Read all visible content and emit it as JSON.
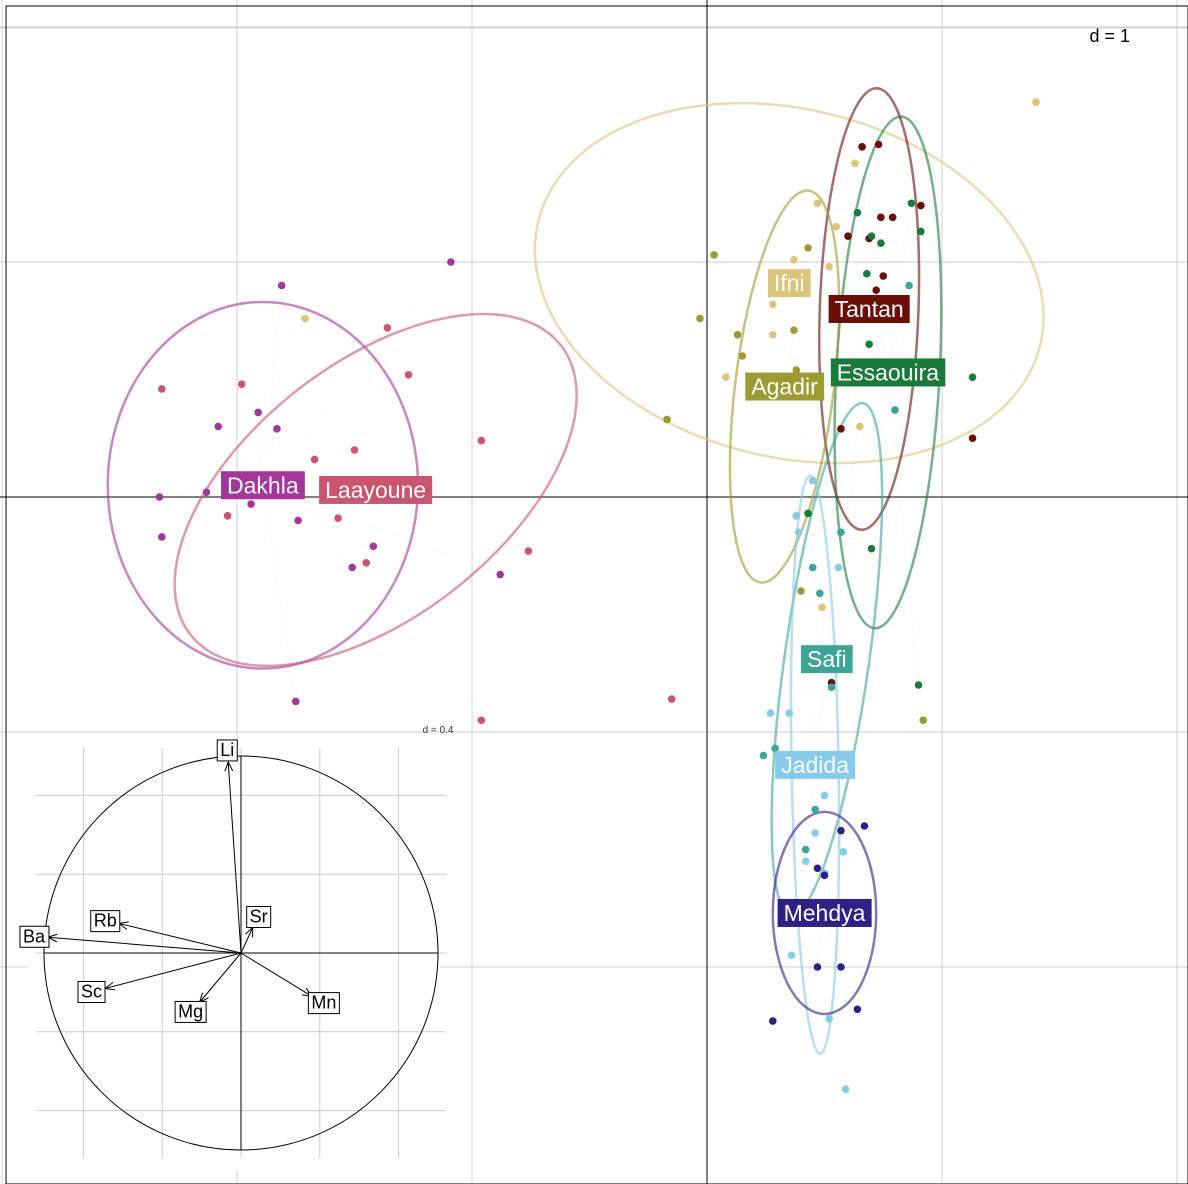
{
  "chart_data": {
    "type": "scatter",
    "title": "",
    "xlabel": "",
    "ylabel": "",
    "xlim": [
      -3.0,
      2.05
    ],
    "ylim": [
      -2.9,
      2.1
    ],
    "grid": true,
    "scale_label": "d = 1",
    "groups": [
      {
        "name": "Dakhla",
        "color": "#A3369B",
        "center": [
          -1.89,
          0.05
        ],
        "ellipse": {
          "rx": 0.66,
          "ry": 0.78,
          "angle": 0
        },
        "points": [
          [
            -1.81,
            0.9
          ],
          [
            -1.09,
            1.0
          ],
          [
            -2.08,
            0.3
          ],
          [
            -1.91,
            0.36
          ],
          [
            -1.83,
            0.29
          ],
          [
            -2.33,
            0.0
          ],
          [
            -2.13,
            0.02
          ],
          [
            -2.32,
            -0.17
          ],
          [
            -1.94,
            -0.03
          ],
          [
            -1.74,
            -0.1
          ],
          [
            -1.42,
            -0.21
          ],
          [
            -1.51,
            -0.3
          ],
          [
            -1.75,
            -0.87
          ],
          [
            -0.88,
            -0.33
          ]
        ]
      },
      {
        "name": "Laayoune",
        "color": "#C9566E",
        "center": [
          -1.41,
          0.03
        ],
        "ellipse": {
          "rx": 1.0,
          "ry": 0.54,
          "angle": 38
        },
        "points": [
          [
            -1.36,
            0.72
          ],
          [
            -1.27,
            0.52
          ],
          [
            -2.32,
            0.46
          ],
          [
            -1.98,
            0.48
          ],
          [
            -1.67,
            0.16
          ],
          [
            -1.5,
            0.2
          ],
          [
            -0.96,
            0.24
          ],
          [
            -2.04,
            -0.08
          ],
          [
            -1.57,
            -0.09
          ],
          [
            -0.76,
            -0.23
          ],
          [
            -1.45,
            -0.28
          ],
          [
            -0.96,
            -0.95
          ],
          [
            -0.15,
            -0.86
          ]
        ]
      },
      {
        "name": "Ifni",
        "color": "#DCC47B",
        "center": [
          0.35,
          0.91
        ],
        "ellipse": {
          "rx": 1.1,
          "ry": 0.74,
          "angle": -14
        },
        "points": [
          [
            -1.71,
            0.76
          ],
          [
            1.4,
            1.68
          ],
          [
            0.47,
            1.25
          ],
          [
            0.63,
            1.42
          ],
          [
            0.55,
            1.15
          ],
          [
            0.52,
            0.98
          ],
          [
            0.37,
            1.01
          ],
          [
            0.28,
            0.82
          ],
          [
            0.28,
            0.69
          ],
          [
            0.08,
            0.51
          ],
          [
            0.65,
            0.3
          ],
          [
            0.49,
            -0.47
          ]
        ]
      },
      {
        "name": "Tantan",
        "color": "#6B0E07",
        "center": [
          0.69,
          0.8
        ],
        "ellipse": {
          "rx": 0.21,
          "ry": 0.94,
          "angle": -2
        },
        "points": [
          [
            0.66,
            1.49
          ],
          [
            0.73,
            1.5
          ],
          [
            0.74,
            1.19
          ],
          [
            0.79,
            1.19
          ],
          [
            0.91,
            1.24
          ],
          [
            0.6,
            1.11
          ],
          [
            0.69,
            1.1
          ],
          [
            0.75,
            0.94
          ],
          [
            0.72,
            0.88
          ],
          [
            0.57,
            0.29
          ],
          [
            1.13,
            0.25
          ],
          [
            0.53,
            -0.79
          ]
        ]
      },
      {
        "name": "Essaouira",
        "color": "#1A7A3A",
        "center": [
          0.77,
          0.53
        ],
        "ellipse": {
          "rx": 0.22,
          "ry": 1.09,
          "angle": -3
        },
        "points": [
          [
            0.64,
            1.21
          ],
          [
            0.87,
            1.25
          ],
          [
            0.91,
            1.13
          ],
          [
            0.7,
            1.11
          ],
          [
            0.74,
            1.08
          ],
          [
            0.68,
            0.95
          ],
          [
            0.69,
            0.65
          ],
          [
            1.13,
            0.51
          ],
          [
            0.43,
            -0.07
          ],
          [
            0.7,
            -0.22
          ],
          [
            0.9,
            -0.8
          ]
        ]
      },
      {
        "name": "Agadir",
        "color": "#9C9A33",
        "center": [
          0.33,
          0.47
        ],
        "ellipse": {
          "rx": 0.84,
          "ry": 0.21,
          "angle": 83
        },
        "points": [
          [
            0.03,
            1.03
          ],
          [
            0.43,
            1.06
          ],
          [
            -0.03,
            0.76
          ],
          [
            0.13,
            0.69
          ],
          [
            0.15,
            0.6
          ],
          [
            0.37,
            0.71
          ],
          [
            -0.17,
            0.33
          ],
          [
            0.4,
            -0.4
          ],
          [
            0.38,
            0.54
          ],
          [
            0.92,
            -0.95
          ]
        ]
      },
      {
        "name": "Safi",
        "color": "#3CA596",
        "center": [
          0.51,
          -0.69
        ],
        "ellipse": {
          "rx": 1.1,
          "ry": 0.18,
          "angle": 82
        },
        "points": [
          [
            0.86,
            0.9
          ],
          [
            0.8,
            0.37
          ],
          [
            0.57,
            -0.15
          ],
          [
            0.45,
            -0.3
          ],
          [
            0.48,
            -0.41
          ],
          [
            0.53,
            -0.81
          ],
          [
            0.24,
            -1.1
          ],
          [
            0.29,
            -1.07
          ],
          [
            0.46,
            -1.33
          ],
          [
            0.42,
            -1.5
          ],
          [
            0.38,
            -1.8
          ]
        ]
      },
      {
        "name": "Jadida",
        "color": "#86CBEA",
        "center": [
          0.46,
          -1.14
        ],
        "ellipse": {
          "rx": 1.23,
          "ry": 0.1,
          "angle": -89
        },
        "points": [
          [
            0.45,
            0.07
          ],
          [
            0.38,
            -0.08
          ],
          [
            0.39,
            -0.15
          ],
          [
            0.56,
            -0.3
          ],
          [
            0.27,
            -0.92
          ],
          [
            0.35,
            -0.92
          ],
          [
            0.5,
            -1.27
          ],
          [
            0.46,
            -1.43
          ],
          [
            0.58,
            -1.51
          ],
          [
            0.42,
            -1.55
          ],
          [
            0.5,
            -1.6
          ],
          [
            0.36,
            -1.95
          ],
          [
            0.52,
            -2.22
          ],
          [
            0.59,
            -2.52
          ]
        ]
      },
      {
        "name": "Mehdya",
        "color": "#2D2086",
        "center": [
          0.5,
          -1.77
        ],
        "ellipse": {
          "rx": 0.43,
          "ry": 0.22,
          "angle": 90
        },
        "points": [
          [
            0.57,
            -1.42
          ],
          [
            0.67,
            -1.4
          ],
          [
            0.5,
            -1.61
          ],
          [
            0.47,
            -1.58
          ],
          [
            0.47,
            -2.0
          ],
          [
            0.57,
            -2.0
          ],
          [
            0.64,
            -2.18
          ],
          [
            0.28,
            -2.23
          ]
        ]
      }
    ],
    "variables": {
      "scale_label": "d = 0.4",
      "arrows": [
        {
          "name": "Li",
          "x": -0.065,
          "y": 0.97
        },
        {
          "name": "Sr",
          "x": 0.06,
          "y": 0.13
        },
        {
          "name": "Rb",
          "x": -0.62,
          "y": 0.15
        },
        {
          "name": "Ba",
          "x": -0.98,
          "y": 0.08
        },
        {
          "name": "Sc",
          "x": -0.69,
          "y": -0.18
        },
        {
          "name": "Mg",
          "x": -0.21,
          "y": -0.25
        },
        {
          "name": "Mn",
          "x": 0.36,
          "y": -0.22
        }
      ]
    }
  }
}
